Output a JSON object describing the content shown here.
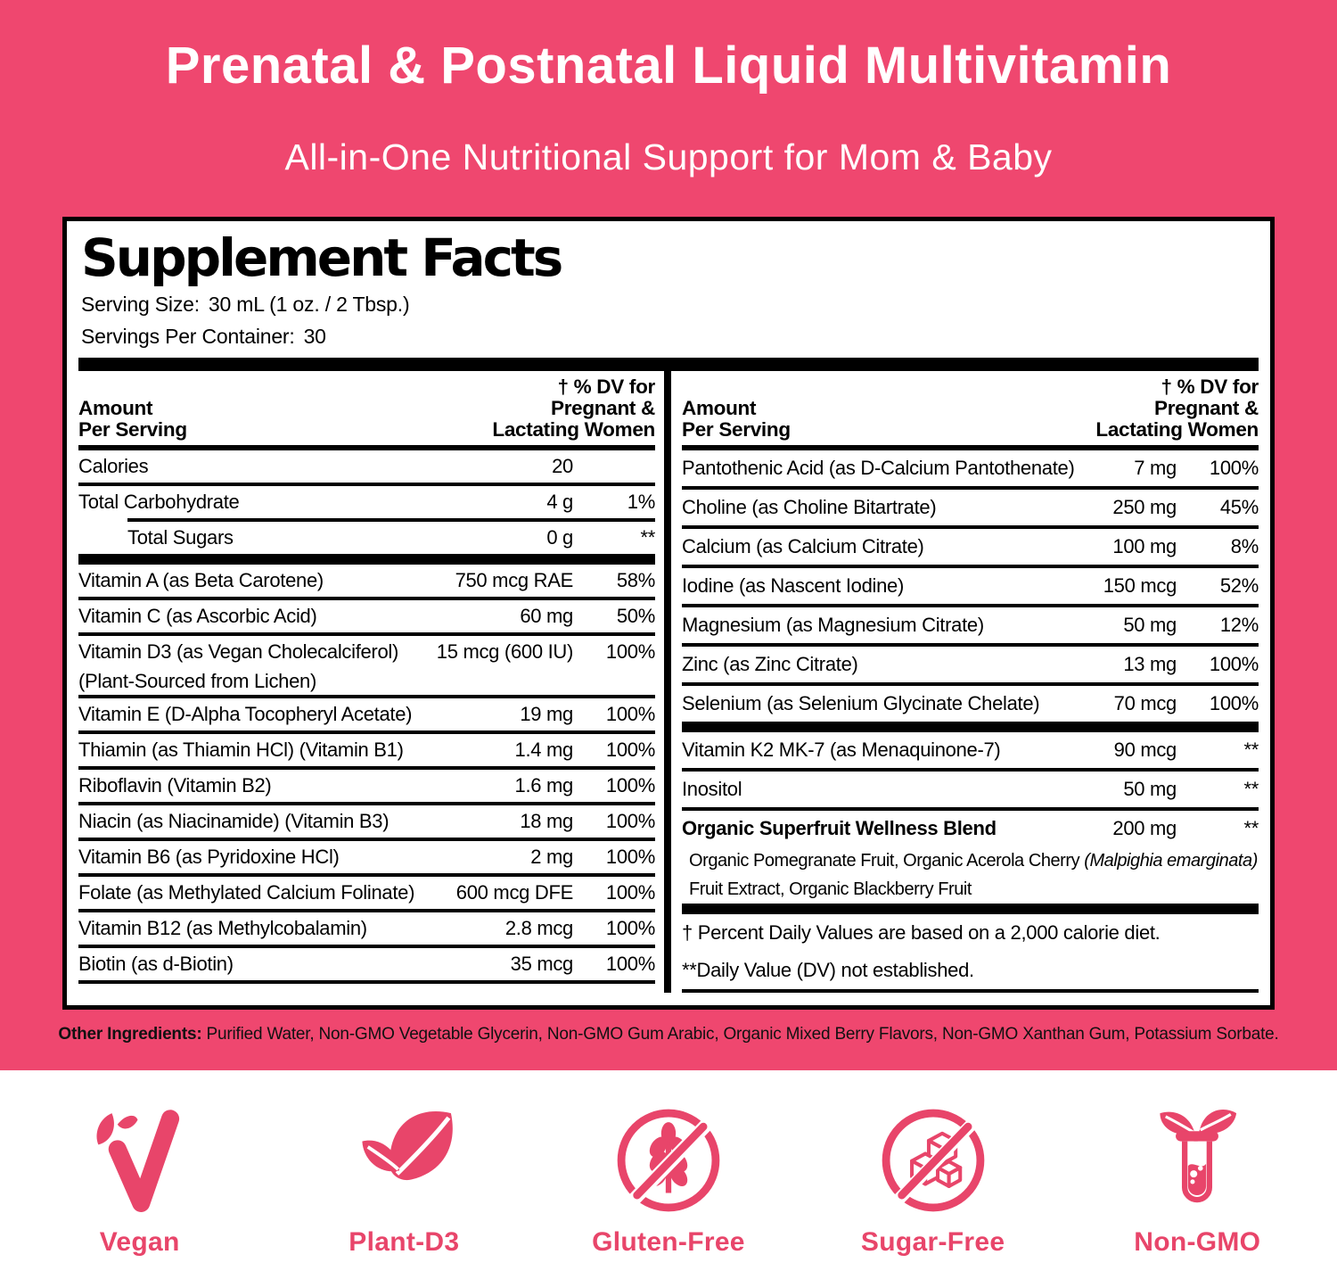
{
  "theme": {
    "pink_background": "#EF476F",
    "icon_pink": "#E8456A",
    "rule_black": "#000000"
  },
  "header": {
    "title": "Prenatal & Postnatal Liquid Multivitamin",
    "subtitle": "All-in-One Nutritional Support for Mom & Baby"
  },
  "supplement_facts": {
    "title": "Supplement Facts",
    "serving_size_label": "Serving Size:",
    "serving_size_value": "30 mL (1 oz. / 2 Tbsp.)",
    "servings_label": "Servings Per Container:",
    "servings_value": "30",
    "column_header": {
      "amount_line1": "Amount",
      "amount_line2": "Per Serving",
      "dv_line1": "†  % DV for",
      "dv_line2": "Pregnant &",
      "dv_line3": "Lactating Women"
    },
    "left_column": [
      {
        "name": "Calories",
        "amount": "20",
        "dv": "",
        "sep": "none"
      },
      {
        "name": "Total Carbohydrate",
        "amount": "4 g",
        "dv": "1%",
        "sep": "line"
      },
      {
        "name": "Total Sugars",
        "amount": "0 g",
        "dv": "**",
        "sep": "line-indent",
        "indent": true
      },
      {
        "name": "Vitamin A (as Beta Carotene)",
        "amount": "750 mcg RAE",
        "dv": "58%",
        "sep": "thick"
      },
      {
        "name": "Vitamin C (as Ascorbic Acid)",
        "amount": "60 mg",
        "dv": "50%",
        "sep": "line"
      },
      {
        "name": "Vitamin D3 (as Vegan Cholecalciferol)",
        "name2": "(Plant-Sourced from Lichen)",
        "amount": "15 mcg (600 IU)",
        "dv": "100%",
        "sep": "line"
      },
      {
        "name": "Vitamin E (D-Alpha Tocopheryl Acetate)",
        "amount": "19 mg",
        "dv": "100%",
        "sep": "line"
      },
      {
        "name": "Thiamin (as Thiamin HCl) (Vitamin B1)",
        "amount": "1.4 mg",
        "dv": "100%",
        "sep": "line"
      },
      {
        "name": "Riboflavin (Vitamin B2)",
        "amount": "1.6 mg",
        "dv": "100%",
        "sep": "line"
      },
      {
        "name": "Niacin (as Niacinamide) (Vitamin B3)",
        "amount": "18 mg",
        "dv": "100%",
        "sep": "line"
      },
      {
        "name": "Vitamin B6 (as Pyridoxine HCl)",
        "amount": "2 mg",
        "dv": "100%",
        "sep": "line"
      },
      {
        "name": "Folate (as Methylated Calcium Folinate)",
        "amount": "600 mcg DFE",
        "dv": "100%",
        "sep": "line"
      },
      {
        "name": "Vitamin B12 (as Methylcobalamin)",
        "amount": "2.8 mcg",
        "dv": "100%",
        "sep": "line"
      },
      {
        "name": "Biotin (as d-Biotin)",
        "amount": "35 mcg",
        "dv": "100%",
        "sep": "line"
      }
    ],
    "right_column": [
      {
        "name": "Pantothenic Acid (as D-Calcium Pantothenate)",
        "amount": "7 mg",
        "dv": "100%",
        "sep": "none"
      },
      {
        "name": "Choline (as Choline Bitartrate)",
        "amount": "250 mg",
        "dv": "45%",
        "sep": "line"
      },
      {
        "name": "Calcium (as Calcium Citrate)",
        "amount": "100 mg",
        "dv": "8%",
        "sep": "line"
      },
      {
        "name": "Iodine (as Nascent Iodine)",
        "amount": "150 mcg",
        "dv": "52%",
        "sep": "line"
      },
      {
        "name": "Magnesium (as Magnesium Citrate)",
        "amount": "50 mg",
        "dv": "12%",
        "sep": "line"
      },
      {
        "name": "Zinc (as Zinc Citrate)",
        "amount": "13 mg",
        "dv": "100%",
        "sep": "line"
      },
      {
        "name": "Selenium (as Selenium Glycinate Chelate)",
        "amount": "70 mcg",
        "dv": "100%",
        "sep": "line"
      },
      {
        "name": "Vitamin K2 MK-7 (as Menaquinone-7)",
        "amount": "90 mcg",
        "dv": "**",
        "sep": "thick"
      },
      {
        "name": "Inositol",
        "amount": "50 mg",
        "dv": "**",
        "sep": "line"
      },
      {
        "name": "Organic Superfruit Wellness Blend",
        "amount": "200 mg",
        "dv": "**",
        "sep": "line",
        "bold": true,
        "sub": [
          [
            {
              "text": "Organic Pomegranate Fruit, Organic Acerola Cherry "
            },
            {
              "text": "(Malpighia emarginata)",
              "italic": true
            }
          ],
          [
            {
              "text": "Fruit Extract, Organic Blackberry Fruit"
            }
          ]
        ]
      }
    ],
    "footnotes": [
      "† Percent Daily Values are based on a 2,000 calorie diet.",
      "**Daily Value (DV) not established."
    ]
  },
  "other_ingredients": {
    "label": "Other Ingredients:",
    "text": " Purified Water, Non-GMO Vegetable Glycerin, Non-GMO Gum Arabic, Organic Mixed Berry Flavors, Non-GMO Xanthan Gum, Potassium Sorbate."
  },
  "badges": [
    {
      "label": "Vegan",
      "icon": "vegan-v-leaf-icon"
    },
    {
      "label": "Plant-D3",
      "icon": "plant-d3-leaves-icon"
    },
    {
      "label": "Gluten-Free",
      "icon": "gluten-free-crossed-wheat-icon"
    },
    {
      "label": "Sugar-Free",
      "icon": "sugar-free-crossed-cubes-icon"
    },
    {
      "label": "Non-GMO",
      "icon": "non-gmo-test-tube-leaf-icon"
    }
  ]
}
